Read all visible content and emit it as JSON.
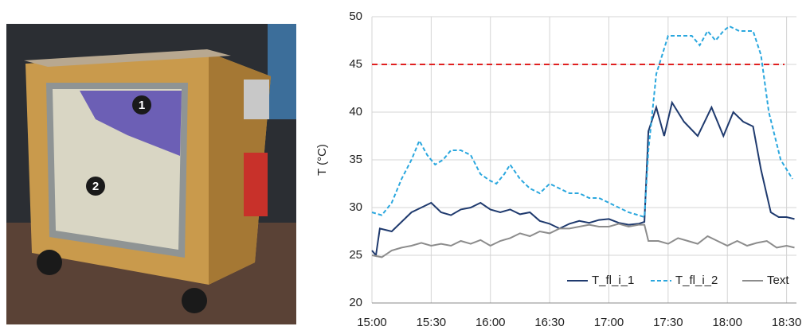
{
  "photo": {
    "labels": [
      "1",
      "2"
    ]
  },
  "chart_data": {
    "type": "line",
    "ylabel": "T (°C)",
    "xlim": [
      900,
      1115
    ],
    "ylim": [
      20,
      50
    ],
    "xticks": [
      {
        "value": 900,
        "label": "15:00"
      },
      {
        "value": 930,
        "label": "15:30"
      },
      {
        "value": 960,
        "label": "16:00"
      },
      {
        "value": 990,
        "label": "16:30"
      },
      {
        "value": 1020,
        "label": "17:00"
      },
      {
        "value": 1050,
        "label": "17:30"
      },
      {
        "value": 1080,
        "label": "18:00"
      },
      {
        "value": 1110,
        "label": "18:30"
      }
    ],
    "yticks": [
      20,
      25,
      30,
      35,
      40,
      45,
      50
    ],
    "grid": true,
    "legend": "bottom-right",
    "threshold": {
      "value": 45,
      "color": "#e02020"
    },
    "series": [
      {
        "name": "T_fl_i_1",
        "color": "#1f3a6e",
        "dash": false,
        "x": [
          900,
          902,
          904,
          910,
          915,
          920,
          925,
          930,
          935,
          940,
          945,
          950,
          955,
          960,
          965,
          970,
          975,
          980,
          985,
          990,
          995,
          1000,
          1005,
          1010,
          1015,
          1020,
          1025,
          1030,
          1035,
          1038,
          1040,
          1044,
          1048,
          1052,
          1058,
          1065,
          1072,
          1078,
          1083,
          1088,
          1093,
          1097,
          1102,
          1106,
          1110,
          1114
        ],
        "values": [
          25.5,
          25,
          27.8,
          27.5,
          28.5,
          29.5,
          30,
          30.5,
          29.5,
          29.2,
          29.8,
          30,
          30.5,
          29.8,
          29.5,
          29.8,
          29.3,
          29.5,
          28.6,
          28.3,
          27.8,
          28.3,
          28.6,
          28.4,
          28.7,
          28.8,
          28.4,
          28.2,
          28.3,
          28.5,
          38,
          40.5,
          37.5,
          41,
          39,
          37.5,
          40.5,
          37.5,
          40,
          39,
          38.5,
          34,
          29.5,
          29,
          29,
          28.8
        ]
      },
      {
        "name": "T_fl_i_2",
        "color": "#2aa7de",
        "dash": true,
        "x": [
          900,
          905,
          910,
          915,
          920,
          924,
          928,
          932,
          936,
          940,
          945,
          950,
          955,
          960,
          963,
          967,
          970,
          975,
          980,
          985,
          990,
          995,
          1000,
          1005,
          1010,
          1015,
          1020,
          1025,
          1030,
          1035,
          1038,
          1040,
          1044,
          1050,
          1056,
          1062,
          1066,
          1070,
          1074,
          1078,
          1081,
          1086,
          1093,
          1097,
          1101,
          1107,
          1113
        ],
        "values": [
          29.5,
          29.2,
          30.5,
          33,
          35,
          37,
          35.5,
          34.5,
          35,
          36,
          36,
          35.5,
          33.5,
          32.8,
          32.5,
          33.5,
          34.5,
          33,
          32,
          31.5,
          32.5,
          32,
          31.5,
          31.5,
          31,
          31,
          30.5,
          30,
          29.5,
          29.2,
          29,
          36,
          44,
          48,
          48,
          48,
          47,
          48.5,
          47.5,
          48.5,
          49,
          48.5,
          48.5,
          46,
          40,
          35,
          33
        ]
      },
      {
        "name": "Text",
        "color": "#8c8c8c",
        "dash": false,
        "x": [
          900,
          905,
          910,
          915,
          920,
          925,
          930,
          935,
          940,
          945,
          950,
          955,
          960,
          965,
          970,
          975,
          980,
          985,
          990,
          995,
          1000,
          1005,
          1010,
          1015,
          1020,
          1025,
          1030,
          1035,
          1038,
          1040,
          1045,
          1050,
          1055,
          1060,
          1065,
          1070,
          1075,
          1080,
          1085,
          1090,
          1095,
          1100,
          1105,
          1110,
          1114
        ],
        "values": [
          25,
          24.8,
          25.5,
          25.8,
          26,
          26.3,
          26,
          26.2,
          26,
          26.5,
          26.2,
          26.6,
          26,
          26.5,
          26.8,
          27.3,
          27,
          27.5,
          27.3,
          27.8,
          27.8,
          28,
          28.2,
          28,
          28,
          28.3,
          28,
          28.2,
          28.2,
          26.5,
          26.5,
          26.2,
          26.8,
          26.5,
          26.2,
          27,
          26.5,
          26,
          26.5,
          26,
          26.3,
          26.5,
          25.8,
          26,
          25.8
        ]
      }
    ]
  }
}
